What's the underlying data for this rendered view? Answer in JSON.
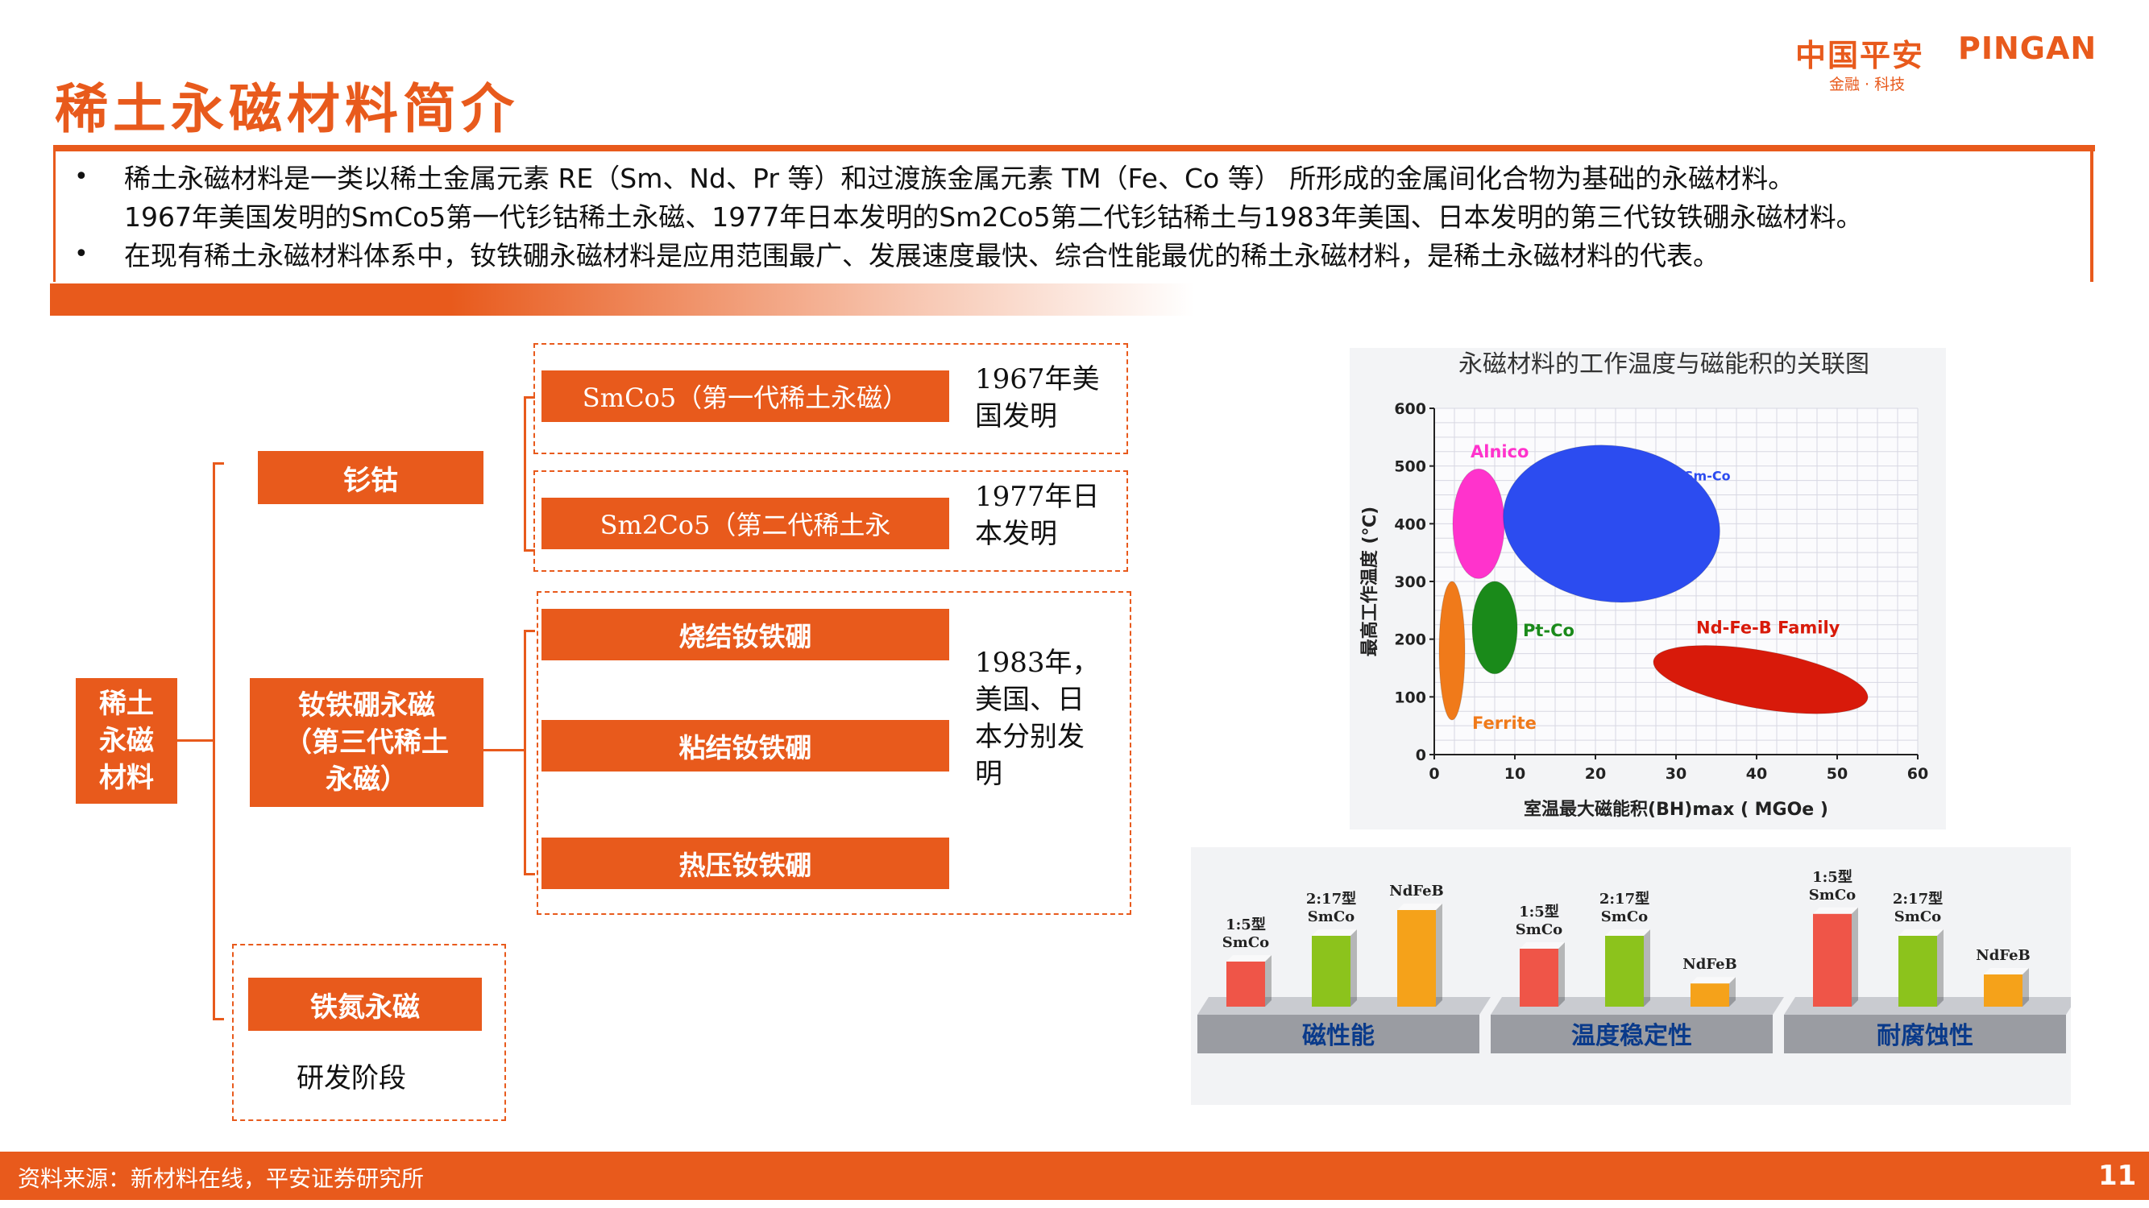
{
  "header": {
    "title": "稀土永磁材料简介",
    "logo_cn": "中国平安",
    "logo_en": "PINGAN",
    "logo_sub": "金融 · 科技"
  },
  "intro": {
    "bullet_1": "稀土永磁材料是一类以稀土金属元素 RE（Sm、Nd、Pr 等）和过渡族金属元素 TM（Fe、Co 等） 所形成的金属间化合物为基础的永磁材料。",
    "bullet_1b": "1967年美国发明的SmCo5第一代钐钴稀土永磁、1977年日本发明的Sm2Co5第二代钐钴稀土与1983年美国、日本发明的第三代钕铁硼永磁材料。",
    "bullet_2": "在现有稀土永磁材料体系中，钕铁硼永磁材料是应用范围最广、发展速度最快、综合性能最优的稀土永磁材料，是稀土永磁材料的代表。",
    "bullet_symbol": "•"
  },
  "tree": {
    "root": [
      "稀土",
      "永磁",
      "材料"
    ],
    "smco": "钐钴",
    "ndfeb": [
      "钕铁硼永磁",
      "（第三代稀土",
      "永磁）"
    ],
    "fen": "铁氮永磁",
    "fen_note": "研发阶段",
    "smco5": "SmCo5（第一代稀土永磁）",
    "smco5_note": [
      "1967年美",
      "国发明"
    ],
    "sm2co5": "Sm2Co5（第二代稀土永",
    "sm2co5_note": [
      "1977年日",
      "本发明"
    ],
    "sintered": "烧结钕铁硼",
    "bonded": "粘结钕铁硼",
    "hotpressed": "热压钕铁硼",
    "ndfeb_note": [
      "1983年，",
      "美国、日",
      "本分别发",
      "明"
    ]
  },
  "chart_data": [
    {
      "type": "scatter",
      "title": "永磁材料的工作温度与磁能积的关联图",
      "xlabel": "室温最大磁能积(BH)max ( MGOe )",
      "ylabel": "最高工作温度 (℃)",
      "xlim": [
        0,
        60
      ],
      "ylim": [
        0,
        600
      ],
      "xticks": [
        0,
        10,
        20,
        30,
        40,
        50,
        60
      ],
      "yticks": [
        0,
        100,
        200,
        300,
        400,
        500,
        600
      ],
      "grid": true,
      "series": [
        {
          "name": "Alnico",
          "cx": 5.5,
          "cy": 400,
          "rx": 3.2,
          "ry": 95,
          "rot": 0,
          "color": "#ff33cc"
        },
        {
          "name": "Sm-Co",
          "cx": 22,
          "cy": 400,
          "rx": 13.5,
          "ry": 135,
          "rot": 8,
          "color": "#2c4cf0"
        },
        {
          "name": "Pt-Co",
          "cx": 7.5,
          "cy": 220,
          "rx": 2.8,
          "ry": 80,
          "rot": 0,
          "color": "#1a8a1a"
        },
        {
          "name": "Ferrite",
          "cx": 2.2,
          "cy": 180,
          "rx": 1.6,
          "ry": 120,
          "rot": 0,
          "color": "#f07a1a"
        },
        {
          "name": "Nd-Fe-B Family",
          "cx": 40.5,
          "cy": 130,
          "rx": 13.5,
          "ry": 50,
          "rot": 10,
          "color": "#d81a0a"
        }
      ]
    },
    {
      "type": "bar",
      "groups": [
        {
          "name": "磁性能",
          "bars": [
            {
              "label": "1:5型\nSmCo",
              "value": 0.35,
              "color": "#ef5548"
            },
            {
              "label": "2:17型\nSmCo",
              "value": 0.55,
              "color": "#8cc31c"
            },
            {
              "label": "NdFeB",
              "value": 0.75,
              "color": "#f5a21a"
            }
          ]
        },
        {
          "name": "温度稳定性",
          "bars": [
            {
              "label": "1:5型\nSmCo",
              "value": 0.45,
              "color": "#ef5548"
            },
            {
              "label": "2:17型\nSmCo",
              "value": 0.55,
              "color": "#8cc31c"
            },
            {
              "label": "NdFeB",
              "value": 0.18,
              "color": "#f5a21a"
            }
          ]
        },
        {
          "name": "耐腐蚀性",
          "bars": [
            {
              "label": "1:5型\nSmCo",
              "value": 0.72,
              "color": "#ef5548"
            },
            {
              "label": "2:17型\nSmCo",
              "value": 0.55,
              "color": "#8cc31c"
            },
            {
              "label": "NdFeB",
              "value": 0.25,
              "color": "#f5a21a"
            }
          ]
        }
      ]
    }
  ],
  "footer": {
    "source": "资料来源：新材料在线，平安证券研究所",
    "page": "11"
  }
}
